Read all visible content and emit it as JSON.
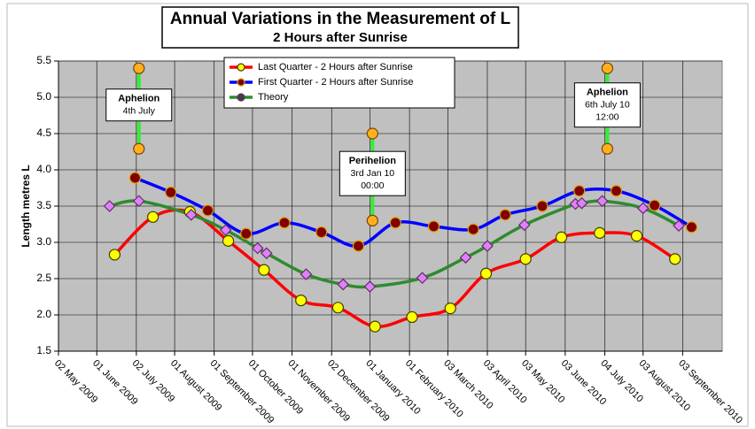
{
  "chart_data": {
    "type": "line",
    "title": "Annual Variations in the Measurement of L",
    "subtitle": "2 Hours after Sunrise",
    "y_label": "Length metres L",
    "xlim": [
      "2009-05-02",
      "2010-10-04"
    ],
    "xticks": [
      {
        "value": "2009-05-02",
        "label": "02 May 2009"
      },
      {
        "value": "2009-06-01",
        "label": "01 June 2009"
      },
      {
        "value": "2009-07-02",
        "label": "02 July 2009"
      },
      {
        "value": "2009-08-01",
        "label": "01 August 2009"
      },
      {
        "value": "2009-09-01",
        "label": "01 September 2009"
      },
      {
        "value": "2009-10-01",
        "label": "01 October 2009"
      },
      {
        "value": "2009-11-01",
        "label": "01 November 2009"
      },
      {
        "value": "2009-12-02",
        "label": "02 December 2009"
      },
      {
        "value": "2010-01-01",
        "label": "01 January 2010"
      },
      {
        "value": "2010-02-01",
        "label": "01 February 2010"
      },
      {
        "value": "2010-03-03",
        "label": "03 March 2010"
      },
      {
        "value": "2010-04-03",
        "label": "03 April 2010"
      },
      {
        "value": "2010-05-03",
        "label": "03 May 2010"
      },
      {
        "value": "2010-06-03",
        "label": "03 June 2010"
      },
      {
        "value": "2010-07-04",
        "label": "04 July 2010"
      },
      {
        "value": "2010-08-03",
        "label": "03 August 2010"
      },
      {
        "value": "2010-09-03",
        "label": "03 September 2010"
      }
    ],
    "ylim": [
      1.5,
      5.5
    ],
    "yticks": [
      1.5,
      {
        "value": 2,
        "label": "2.0"
      },
      2.5,
      {
        "value": 3,
        "label": "3.0"
      },
      3.5,
      {
        "value": 4,
        "label": "4.0"
      },
      4.5,
      {
        "value": 5,
        "label": "5.0"
      },
      5.5
    ],
    "grid": true,
    "legend": "top",
    "series": [
      {
        "name": "Last Quarter - 2 Hours after Sunrise",
        "color": "#ff0000",
        "marker_color": "#ffff00",
        "marker": "circle",
        "x": [
          "2009-06-15",
          "2009-07-15",
          "2009-08-13",
          "2009-09-12",
          "2009-10-10",
          "2009-11-08",
          "2009-12-07",
          "2010-01-05",
          "2010-02-03",
          "2010-03-05",
          "2010-04-02",
          "2010-05-03",
          "2010-05-31",
          "2010-06-30",
          "2010-07-29",
          "2010-08-28"
        ],
        "values": [
          2.83,
          3.35,
          3.42,
          3.02,
          2.62,
          2.2,
          2.1,
          1.84,
          1.97,
          2.09,
          2.57,
          2.77,
          3.07,
          3.13,
          3.09,
          2.77
        ]
      },
      {
        "name": "First Quarter - 2 Hours after Sunrise",
        "color": "#0000ff",
        "marker_color": "#800000",
        "marker": "circle",
        "x": [
          "2009-07-01",
          "2009-07-29",
          "2009-08-27",
          "2009-09-26",
          "2009-10-26",
          "2009-11-24",
          "2009-12-23",
          "2010-01-21",
          "2010-02-20",
          "2010-03-23",
          "2010-04-17",
          "2010-05-16",
          "2010-06-14",
          "2010-07-13",
          "2010-08-12",
          "2010-09-10"
        ],
        "values": [
          3.89,
          3.69,
          3.44,
          3.12,
          3.27,
          3.14,
          2.95,
          3.27,
          3.22,
          3.18,
          3.38,
          3.5,
          3.71,
          3.71,
          3.51,
          3.21
        ]
      },
      {
        "name": "Theory",
        "color": "#2e8b2e",
        "marker_color": "#e080ff",
        "marker": "diamond",
        "x": [
          "2009-06-11",
          "2009-07-04",
          "2009-08-14",
          "2009-09-10",
          "2009-10-05",
          "2009-10-12",
          "2009-11-12",
          "2009-12-11",
          "2010-01-01",
          "2010-02-11",
          "2010-03-17",
          "2010-04-03",
          "2010-05-02",
          "2010-06-11",
          "2010-06-16",
          "2010-07-02",
          "2010-08-03",
          "2010-08-31"
        ],
        "values": [
          3.5,
          3.57,
          3.38,
          3.17,
          2.92,
          2.85,
          2.56,
          2.42,
          2.39,
          2.51,
          2.79,
          2.95,
          3.24,
          3.53,
          3.54,
          3.57,
          3.47,
          3.23
        ]
      }
    ],
    "annotations": [
      {
        "label": [
          "Aphelion",
          "4th July"
        ],
        "x": "2009-07-04",
        "y": [
          5.4,
          4.29
        ]
      },
      {
        "label": [
          "Perihelion",
          "3rd Jan 10",
          "00:00"
        ],
        "x": "2010-01-03",
        "y": [
          4.5,
          3.3
        ]
      },
      {
        "label": [
          "Aphelion",
          "6th July 10",
          "12:00"
        ],
        "x": "2010-07-06",
        "y": [
          5.4,
          4.29
        ]
      }
    ]
  }
}
